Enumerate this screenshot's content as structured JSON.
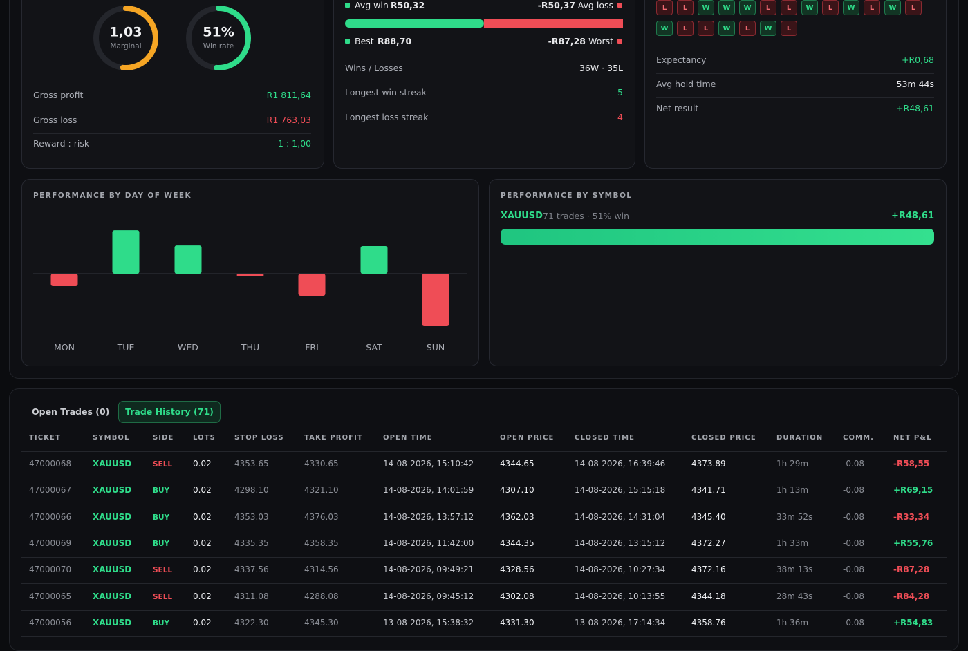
{
  "gauges": [
    {
      "value": 1.03,
      "label": "1,03",
      "caption": "Marginal",
      "color": "#f5a524"
    },
    {
      "value": 51,
      "label": "51%",
      "caption": "Win rate",
      "color": "#2fdc8a"
    }
  ],
  "summary_rows": [
    {
      "label": "Gross profit",
      "value": "R1 811,64",
      "color": "#2fdc8a"
    },
    {
      "label": "Gross loss",
      "value": "R1 763,03",
      "color": "#ef4d56"
    },
    {
      "label": "Reward : risk",
      "value": "1 : 1,00",
      "color": "#2fdc8a"
    }
  ],
  "avg_win": {
    "label": "Avg win",
    "value": 50.32,
    "value_label": "R50,32"
  },
  "avg_loss": {
    "label": "Avg loss",
    "value": -50.37,
    "value_label": "-R50,37"
  },
  "best": {
    "label": "Best",
    "value": "R88,70"
  },
  "worst": {
    "label": "Worst",
    "value": "-R87,28"
  },
  "trade_rows": [
    {
      "label": "Wins / Losses",
      "value": "36W · 35L",
      "color": "#e8e9ec"
    },
    {
      "label": "Longest win streak",
      "value": "5",
      "color": "#2fdc8a"
    },
    {
      "label": "Longest loss streak",
      "value": "4",
      "color": "#ef4d56"
    }
  ],
  "streak": [
    "L",
    "L",
    "W",
    "W",
    "W",
    "L",
    "L",
    "W",
    "L",
    "W",
    "L",
    "W",
    "L",
    "W",
    "L",
    "L",
    "W",
    "L",
    "W",
    "L"
  ],
  "stats_rows": [
    {
      "label": "Expectancy",
      "value": "+R0,68",
      "color": "#2fdc8a"
    },
    {
      "label": "Avg hold time",
      "value": "53m 44s",
      "color": "#e8e9ec"
    },
    {
      "label": "Net result",
      "value": "+R48,61",
      "color": "#2fdc8a"
    }
  ],
  "day_chart": {
    "type": "bar",
    "title": "PERFORMANCE BY DAY OF WEEK",
    "categories": [
      "MON",
      "TUE",
      "WED",
      "THU",
      "FRI",
      "SAT",
      "SUN"
    ],
    "values": [
      -63,
      220,
      143,
      -14,
      -112,
      140,
      -266
    ],
    "positive_color": "#2fdc8a",
    "negative_color": "#ef4d56"
  },
  "symbol_chart": {
    "title": "PERFORMANCE BY SYMBOL",
    "name": "XAUUSD",
    "detail": "71 trades · 51% win",
    "pnl": "+R48,61"
  },
  "tabs": [
    {
      "label": "Open Trades (0)",
      "active": false
    },
    {
      "label": "Trade History (71)",
      "active": true
    }
  ],
  "table": {
    "headers": [
      "TICKET",
      "SYMBOL",
      "SIDE",
      "LOTS",
      "STOP LOSS",
      "TAKE PROFIT",
      "OPEN TIME",
      "OPEN PRICE",
      "CLOSED TIME",
      "CLOSED PRICE",
      "DURATION",
      "COMM.",
      "NET P&L"
    ],
    "rows": [
      [
        "47000068",
        "XAUUSD",
        "SELL",
        "0.02",
        "4353.65",
        "4330.65",
        "14-08-2026, 15:10:42",
        "4344.65",
        "14-08-2026, 16:39:46",
        "4373.89",
        "1h 29m",
        "-0.08",
        "-R58,55"
      ],
      [
        "47000067",
        "XAUUSD",
        "BUY",
        "0.02",
        "4298.10",
        "4321.10",
        "14-08-2026, 14:01:59",
        "4307.10",
        "14-08-2026, 15:15:18",
        "4341.71",
        "1h 13m",
        "-0.08",
        "+R69,15"
      ],
      [
        "47000066",
        "XAUUSD",
        "BUY",
        "0.02",
        "4353.03",
        "4376.03",
        "14-08-2026, 13:57:12",
        "4362.03",
        "14-08-2026, 14:31:04",
        "4345.40",
        "33m 52s",
        "-0.08",
        "-R33,34"
      ],
      [
        "47000069",
        "XAUUSD",
        "BUY",
        "0.02",
        "4335.35",
        "4358.35",
        "14-08-2026, 11:42:00",
        "4344.35",
        "14-08-2026, 13:15:12",
        "4372.27",
        "1h 33m",
        "-0.08",
        "+R55,76"
      ],
      [
        "47000070",
        "XAUUSD",
        "SELL",
        "0.02",
        "4337.56",
        "4314.56",
        "14-08-2026, 09:49:21",
        "4328.56",
        "14-08-2026, 10:27:34",
        "4372.16",
        "38m 13s",
        "-0.08",
        "-R87,28"
      ],
      [
        "47000065",
        "XAUUSD",
        "SELL",
        "0.02",
        "4311.08",
        "4288.08",
        "14-08-2026, 09:45:12",
        "4302.08",
        "14-08-2026, 10:13:55",
        "4344.18",
        "28m 43s",
        "-0.08",
        "-R84,28"
      ],
      [
        "47000056",
        "XAUUSD",
        "BUY",
        "0.02",
        "4322.30",
        "4345.30",
        "13-08-2026, 15:38:32",
        "4331.30",
        "13-08-2026, 17:14:34",
        "4358.76",
        "1h 36m",
        "-0.08",
        "+R54,83"
      ]
    ]
  }
}
